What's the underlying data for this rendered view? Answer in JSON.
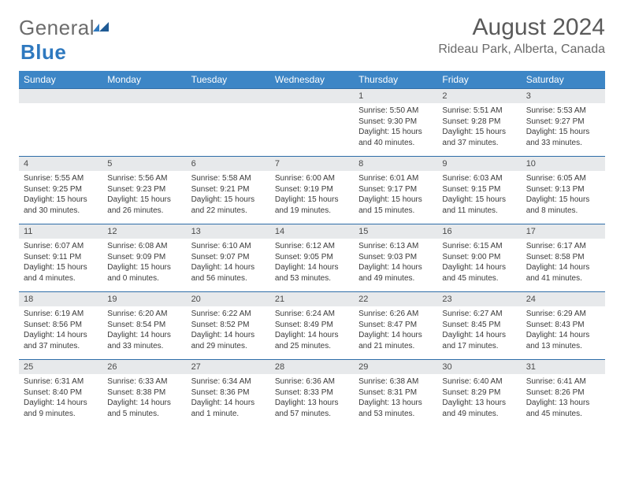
{
  "logo": {
    "part1": "General",
    "part2": "Blue"
  },
  "title": "August 2024",
  "location": "Rideau Park, Alberta, Canada",
  "colors": {
    "header_bg": "#3d86c6",
    "header_text": "#ffffff",
    "daynum_bg": "#e7e9eb",
    "row_border": "#2f6da8",
    "logo_gray": "#6c6c6c",
    "logo_blue": "#2f79bf"
  },
  "weekdays": [
    "Sunday",
    "Monday",
    "Tuesday",
    "Wednesday",
    "Thursday",
    "Friday",
    "Saturday"
  ],
  "weeks": [
    [
      {
        "n": "",
        "sr": "",
        "ss": "",
        "dl": ""
      },
      {
        "n": "",
        "sr": "",
        "ss": "",
        "dl": ""
      },
      {
        "n": "",
        "sr": "",
        "ss": "",
        "dl": ""
      },
      {
        "n": "",
        "sr": "",
        "ss": "",
        "dl": ""
      },
      {
        "n": "1",
        "sr": "Sunrise: 5:50 AM",
        "ss": "Sunset: 9:30 PM",
        "dl": "Daylight: 15 hours and 40 minutes."
      },
      {
        "n": "2",
        "sr": "Sunrise: 5:51 AM",
        "ss": "Sunset: 9:28 PM",
        "dl": "Daylight: 15 hours and 37 minutes."
      },
      {
        "n": "3",
        "sr": "Sunrise: 5:53 AM",
        "ss": "Sunset: 9:27 PM",
        "dl": "Daylight: 15 hours and 33 minutes."
      }
    ],
    [
      {
        "n": "4",
        "sr": "Sunrise: 5:55 AM",
        "ss": "Sunset: 9:25 PM",
        "dl": "Daylight: 15 hours and 30 minutes."
      },
      {
        "n": "5",
        "sr": "Sunrise: 5:56 AM",
        "ss": "Sunset: 9:23 PM",
        "dl": "Daylight: 15 hours and 26 minutes."
      },
      {
        "n": "6",
        "sr": "Sunrise: 5:58 AM",
        "ss": "Sunset: 9:21 PM",
        "dl": "Daylight: 15 hours and 22 minutes."
      },
      {
        "n": "7",
        "sr": "Sunrise: 6:00 AM",
        "ss": "Sunset: 9:19 PM",
        "dl": "Daylight: 15 hours and 19 minutes."
      },
      {
        "n": "8",
        "sr": "Sunrise: 6:01 AM",
        "ss": "Sunset: 9:17 PM",
        "dl": "Daylight: 15 hours and 15 minutes."
      },
      {
        "n": "9",
        "sr": "Sunrise: 6:03 AM",
        "ss": "Sunset: 9:15 PM",
        "dl": "Daylight: 15 hours and 11 minutes."
      },
      {
        "n": "10",
        "sr": "Sunrise: 6:05 AM",
        "ss": "Sunset: 9:13 PM",
        "dl": "Daylight: 15 hours and 8 minutes."
      }
    ],
    [
      {
        "n": "11",
        "sr": "Sunrise: 6:07 AM",
        "ss": "Sunset: 9:11 PM",
        "dl": "Daylight: 15 hours and 4 minutes."
      },
      {
        "n": "12",
        "sr": "Sunrise: 6:08 AM",
        "ss": "Sunset: 9:09 PM",
        "dl": "Daylight: 15 hours and 0 minutes."
      },
      {
        "n": "13",
        "sr": "Sunrise: 6:10 AM",
        "ss": "Sunset: 9:07 PM",
        "dl": "Daylight: 14 hours and 56 minutes."
      },
      {
        "n": "14",
        "sr": "Sunrise: 6:12 AM",
        "ss": "Sunset: 9:05 PM",
        "dl": "Daylight: 14 hours and 53 minutes."
      },
      {
        "n": "15",
        "sr": "Sunrise: 6:13 AM",
        "ss": "Sunset: 9:03 PM",
        "dl": "Daylight: 14 hours and 49 minutes."
      },
      {
        "n": "16",
        "sr": "Sunrise: 6:15 AM",
        "ss": "Sunset: 9:00 PM",
        "dl": "Daylight: 14 hours and 45 minutes."
      },
      {
        "n": "17",
        "sr": "Sunrise: 6:17 AM",
        "ss": "Sunset: 8:58 PM",
        "dl": "Daylight: 14 hours and 41 minutes."
      }
    ],
    [
      {
        "n": "18",
        "sr": "Sunrise: 6:19 AM",
        "ss": "Sunset: 8:56 PM",
        "dl": "Daylight: 14 hours and 37 minutes."
      },
      {
        "n": "19",
        "sr": "Sunrise: 6:20 AM",
        "ss": "Sunset: 8:54 PM",
        "dl": "Daylight: 14 hours and 33 minutes."
      },
      {
        "n": "20",
        "sr": "Sunrise: 6:22 AM",
        "ss": "Sunset: 8:52 PM",
        "dl": "Daylight: 14 hours and 29 minutes."
      },
      {
        "n": "21",
        "sr": "Sunrise: 6:24 AM",
        "ss": "Sunset: 8:49 PM",
        "dl": "Daylight: 14 hours and 25 minutes."
      },
      {
        "n": "22",
        "sr": "Sunrise: 6:26 AM",
        "ss": "Sunset: 8:47 PM",
        "dl": "Daylight: 14 hours and 21 minutes."
      },
      {
        "n": "23",
        "sr": "Sunrise: 6:27 AM",
        "ss": "Sunset: 8:45 PM",
        "dl": "Daylight: 14 hours and 17 minutes."
      },
      {
        "n": "24",
        "sr": "Sunrise: 6:29 AM",
        "ss": "Sunset: 8:43 PM",
        "dl": "Daylight: 14 hours and 13 minutes."
      }
    ],
    [
      {
        "n": "25",
        "sr": "Sunrise: 6:31 AM",
        "ss": "Sunset: 8:40 PM",
        "dl": "Daylight: 14 hours and 9 minutes."
      },
      {
        "n": "26",
        "sr": "Sunrise: 6:33 AM",
        "ss": "Sunset: 8:38 PM",
        "dl": "Daylight: 14 hours and 5 minutes."
      },
      {
        "n": "27",
        "sr": "Sunrise: 6:34 AM",
        "ss": "Sunset: 8:36 PM",
        "dl": "Daylight: 14 hours and 1 minute."
      },
      {
        "n": "28",
        "sr": "Sunrise: 6:36 AM",
        "ss": "Sunset: 8:33 PM",
        "dl": "Daylight: 13 hours and 57 minutes."
      },
      {
        "n": "29",
        "sr": "Sunrise: 6:38 AM",
        "ss": "Sunset: 8:31 PM",
        "dl": "Daylight: 13 hours and 53 minutes."
      },
      {
        "n": "30",
        "sr": "Sunrise: 6:40 AM",
        "ss": "Sunset: 8:29 PM",
        "dl": "Daylight: 13 hours and 49 minutes."
      },
      {
        "n": "31",
        "sr": "Sunrise: 6:41 AM",
        "ss": "Sunset: 8:26 PM",
        "dl": "Daylight: 13 hours and 45 minutes."
      }
    ]
  ]
}
